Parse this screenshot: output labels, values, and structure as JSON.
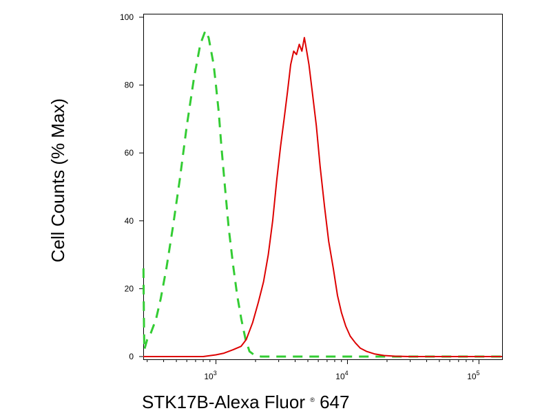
{
  "chart_data": {
    "type": "line",
    "title": "",
    "xlabel": "STK17B-Alexa Fluor",
    "xlabel_mark": "®",
    "xlabel_suffix": " 647",
    "ylabel": "Cell Counts (% Max)",
    "x_scale": "log",
    "xlim": [
      280,
      150000
    ],
    "ylim": [
      0,
      100
    ],
    "grid": false,
    "y_ticks": [
      {
        "value": 0,
        "label": "0"
      },
      {
        "value": 20,
        "label": "20"
      },
      {
        "value": 40,
        "label": "40"
      },
      {
        "value": 60,
        "label": "60"
      },
      {
        "value": 80,
        "label": "80"
      },
      {
        "value": 100,
        "label": "100"
      }
    ],
    "x_ticks": [
      {
        "value": 1000,
        "base": "10",
        "exp": "3"
      },
      {
        "value": 10000,
        "base": "10",
        "exp": "4"
      },
      {
        "value": 100000,
        "base": "10",
        "exp": "5"
      }
    ],
    "series": [
      {
        "color": "#33cc33",
        "style": "dashed",
        "x": [
          281,
          283,
          285,
          290,
          300,
          320,
          350,
          380,
          420,
          470,
          530,
          600,
          680,
          760,
          830,
          880,
          920,
          960,
          1000,
          1050,
          1100,
          1170,
          1250,
          1350,
          1450,
          1560,
          1680,
          1800,
          1950,
          2200,
          3000,
          5000,
          10000,
          20000,
          150000
        ],
        "y": [
          26,
          12,
          2,
          3,
          5,
          7,
          11,
          17,
          26,
          38,
          52,
          68,
          82,
          92,
          96,
          94,
          90,
          86,
          80,
          72,
          62,
          50,
          38,
          27,
          18,
          11,
          5,
          1.5,
          0.5,
          0,
          0,
          0,
          0,
          0,
          0
        ]
      },
      {
        "color": "#dd0000",
        "style": "solid",
        "x": [
          280,
          800,
          1000,
          1150,
          1350,
          1550,
          1700,
          1900,
          2100,
          2300,
          2500,
          2700,
          2900,
          3100,
          3300,
          3500,
          3700,
          3900,
          4100,
          4300,
          4500,
          4700,
          4900,
          5100,
          5400,
          5800,
          6200,
          6700,
          7200,
          7800,
          8400,
          9000,
          9700,
          10500,
          11500,
          12500,
          14000,
          16000,
          19000,
          23000,
          30000,
          150000
        ],
        "y": [
          0,
          0,
          0.5,
          1,
          2,
          3,
          5,
          10,
          16,
          22,
          30,
          40,
          52,
          62,
          70,
          78,
          86,
          90,
          89,
          92,
          90,
          94,
          90,
          86,
          78,
          68,
          56,
          44,
          34,
          26,
          18,
          13,
          9,
          6,
          4,
          2.5,
          1.5,
          0.8,
          0.3,
          0.1,
          0,
          0
        ]
      }
    ]
  }
}
